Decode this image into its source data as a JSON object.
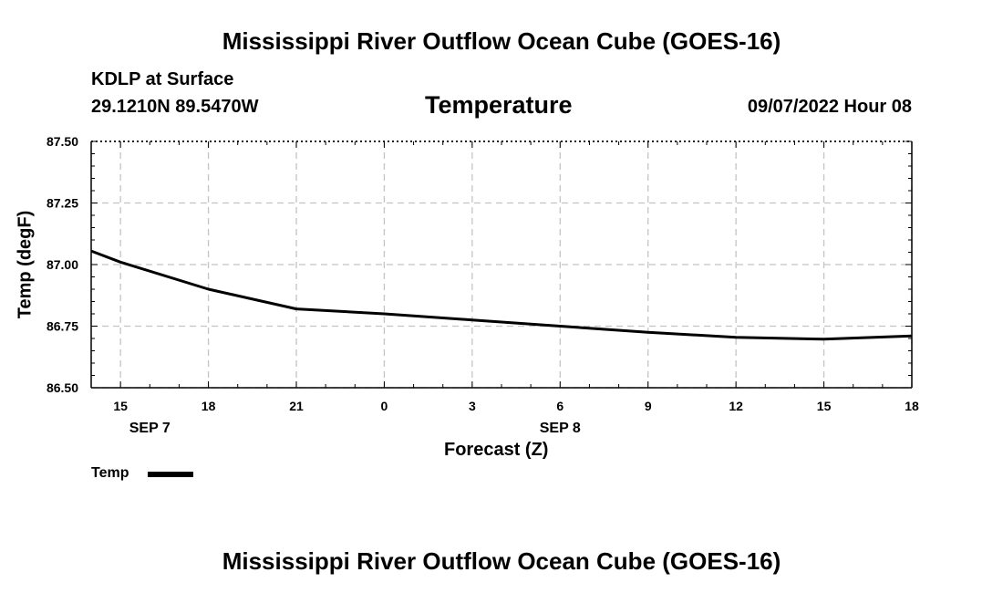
{
  "header": {
    "main_title": "Mississippi River Outflow Ocean Cube (GOES-16)",
    "station": "KDLP at Surface",
    "coords": "29.1210N  89.5470W",
    "datetime": "09/07/2022 Hour 08"
  },
  "footer": {
    "repeat_title": "Mississippi River Outflow Ocean Cube (GOES-16)"
  },
  "legend": {
    "label": "Temp"
  },
  "chart_data": {
    "type": "line",
    "title": "Temperature",
    "xlabel": "Forecast (Z)",
    "ylabel": "Temp (degF)",
    "xlim": [
      -1,
      27
    ],
    "ylim": [
      86.5,
      87.5
    ],
    "grid": true,
    "x_ticks": [
      0,
      3,
      6,
      9,
      12,
      15,
      18,
      21,
      24,
      27
    ],
    "x_tick_labels": [
      "15",
      "18",
      "21",
      "0",
      "3",
      "6",
      "9",
      "12",
      "15",
      "18"
    ],
    "date_labels": [
      {
        "x": 1.0,
        "label": "SEP 7"
      },
      {
        "x": 15.0,
        "label": "SEP 8"
      }
    ],
    "y_ticks": [
      86.5,
      86.75,
      87.0,
      87.25,
      87.5
    ],
    "y_tick_labels": [
      "86.50",
      "86.75",
      "87.00",
      "87.25",
      "87.50"
    ],
    "series": [
      {
        "name": "Temp",
        "color": "#000000",
        "x": [
          -1,
          0,
          3,
          6,
          9,
          12,
          15,
          18,
          21,
          24,
          27
        ],
        "y": [
          87.055,
          87.01,
          86.9,
          86.82,
          86.8,
          86.775,
          86.75,
          86.725,
          86.705,
          86.697,
          86.71
        ]
      }
    ]
  }
}
